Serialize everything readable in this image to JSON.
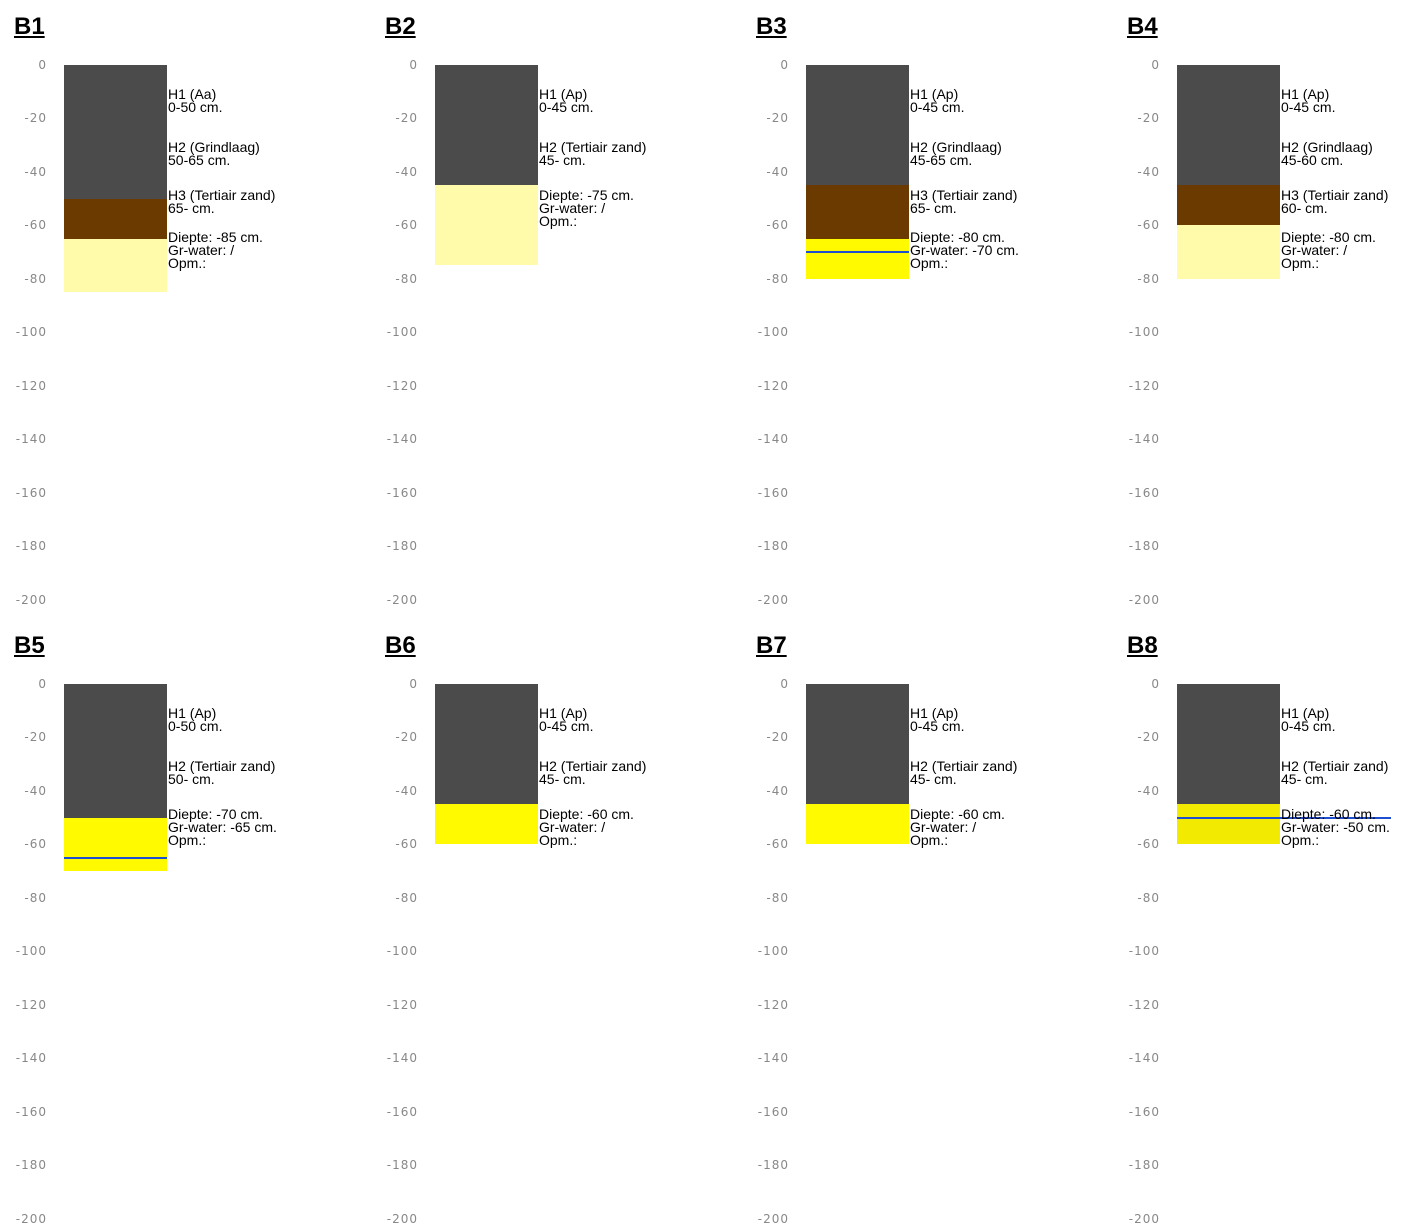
{
  "axis": {
    "ticks": [
      "0",
      "-20",
      "-40",
      "-60",
      "-80",
      "-100",
      "-120",
      "-140",
      "-160",
      "-180",
      "-200"
    ],
    "range_cm": [
      0,
      200
    ]
  },
  "colors": {
    "dark_topsoil": "#4b4b4b",
    "brown_gravel": "#6a3a00",
    "light_yellow_sand": "#fffbaa",
    "bright_yellow_sand": "#fffa00",
    "pale_yellow_sand": "#f2ea00",
    "groundwater_line": "#1f4fd1"
  },
  "boreholes": [
    {
      "title": "B1",
      "layers": [
        {
          "top": 0,
          "bottom": 50,
          "color": "#4b4b4b"
        },
        {
          "top": 50,
          "bottom": 65,
          "color": "#6a3a00"
        },
        {
          "top": 65,
          "bottom": 85,
          "color": "#fffbaa"
        }
      ],
      "groundwater": null,
      "labels": [
        {
          "at": 11,
          "lines": [
            "H1 (Aa)",
            "0-50 cm."
          ]
        },
        {
          "at": 30.5,
          "lines": [
            "H2 (Grindlaag)",
            "50-65 cm."
          ]
        },
        {
          "at": 48.5,
          "lines": [
            "H3 (Tertiair zand)",
            "65- cm."
          ]
        },
        {
          "at": 64.5,
          "lines": [
            "Diepte: -85 cm.",
            "Gr-water: /",
            "Opm.:"
          ]
        }
      ]
    },
    {
      "title": "B2",
      "layers": [
        {
          "top": 0,
          "bottom": 45,
          "color": "#4b4b4b"
        },
        {
          "top": 45,
          "bottom": 75,
          "color": "#fffbaa"
        }
      ],
      "groundwater": null,
      "labels": [
        {
          "at": 11,
          "lines": [
            "H1 (Ap)",
            "0-45 cm."
          ]
        },
        {
          "at": 30.5,
          "lines": [
            "H2 (Tertiair zand)",
            "45- cm."
          ]
        },
        {
          "at": 48.5,
          "lines": [
            "Diepte: -75 cm.",
            "Gr-water: /",
            "Opm.:"
          ]
        }
      ]
    },
    {
      "title": "B3",
      "layers": [
        {
          "top": 0,
          "bottom": 45,
          "color": "#4b4b4b"
        },
        {
          "top": 45,
          "bottom": 65,
          "color": "#6a3a00"
        },
        {
          "top": 65,
          "bottom": 80,
          "color": "#fffa00"
        }
      ],
      "groundwater": 70,
      "labels": [
        {
          "at": 11,
          "lines": [
            "H1 (Ap)",
            "0-45 cm."
          ]
        },
        {
          "at": 30.5,
          "lines": [
            "H2 (Grindlaag)",
            "45-65 cm."
          ]
        },
        {
          "at": 48.5,
          "lines": [
            "H3 (Tertiair zand)",
            "65- cm."
          ]
        },
        {
          "at": 64.5,
          "lines": [
            "Diepte: -80 cm.",
            "Gr-water: -70 cm.",
            "Opm.:"
          ]
        }
      ]
    },
    {
      "title": "B4",
      "layers": [
        {
          "top": 0,
          "bottom": 45,
          "color": "#4b4b4b"
        },
        {
          "top": 45,
          "bottom": 60,
          "color": "#6a3a00"
        },
        {
          "top": 60,
          "bottom": 80,
          "color": "#fffbaa"
        }
      ],
      "groundwater": null,
      "labels": [
        {
          "at": 11,
          "lines": [
            "H1 (Ap)",
            "0-45 cm."
          ]
        },
        {
          "at": 30.5,
          "lines": [
            "H2 (Grindlaag)",
            "45-60 cm."
          ]
        },
        {
          "at": 48.5,
          "lines": [
            "H3 (Tertiair zand)",
            "60- cm."
          ]
        },
        {
          "at": 64.5,
          "lines": [
            "Diepte: -80 cm.",
            "Gr-water: /",
            "Opm.:"
          ]
        }
      ]
    },
    {
      "title": "B5",
      "layers": [
        {
          "top": 0,
          "bottom": 50,
          "color": "#4b4b4b"
        },
        {
          "top": 50,
          "bottom": 70,
          "color": "#fffa00"
        }
      ],
      "groundwater": 65,
      "labels": [
        {
          "at": 11,
          "lines": [
            "H1 (Ap)",
            "0-50 cm."
          ]
        },
        {
          "at": 30.5,
          "lines": [
            "H2 (Tertiair zand)",
            "50- cm."
          ]
        },
        {
          "at": 48.5,
          "lines": [
            "Diepte: -70 cm.",
            "Gr-water: -65 cm.",
            "Opm.:"
          ]
        }
      ]
    },
    {
      "title": "B6",
      "layers": [
        {
          "top": 0,
          "bottom": 45,
          "color": "#4b4b4b"
        },
        {
          "top": 45,
          "bottom": 60,
          "color": "#fffa00"
        }
      ],
      "groundwater": null,
      "labels": [
        {
          "at": 11,
          "lines": [
            "H1 (Ap)",
            "0-45 cm."
          ]
        },
        {
          "at": 30.5,
          "lines": [
            "H2 (Tertiair zand)",
            "45- cm."
          ]
        },
        {
          "at": 48.5,
          "lines": [
            "Diepte: -60 cm.",
            "Gr-water: /",
            "Opm.:"
          ]
        }
      ]
    },
    {
      "title": "B7",
      "layers": [
        {
          "top": 0,
          "bottom": 45,
          "color": "#4b4b4b"
        },
        {
          "top": 45,
          "bottom": 60,
          "color": "#fffa00"
        }
      ],
      "groundwater": null,
      "labels": [
        {
          "at": 11,
          "lines": [
            "H1 (Ap)",
            "0-45 cm."
          ]
        },
        {
          "at": 30.5,
          "lines": [
            "H2 (Tertiair zand)",
            "45- cm."
          ]
        },
        {
          "at": 48.5,
          "lines": [
            "Diepte: -60 cm.",
            "Gr-water: /",
            "Opm.:"
          ]
        }
      ]
    },
    {
      "title": "B8",
      "layers": [
        {
          "top": 0,
          "bottom": 45,
          "color": "#4b4b4b"
        },
        {
          "top": 45,
          "bottom": 60,
          "color": "#f2ea00"
        }
      ],
      "groundwater": 50,
      "labels": [
        {
          "at": 11,
          "lines": [
            "H1 (Ap)",
            "0-45 cm."
          ]
        },
        {
          "at": 30.5,
          "lines": [
            "H2 (Tertiair zand)",
            "45- cm."
          ]
        },
        {
          "at": 48.5,
          "lines": [
            "Diepte: -60 cm.",
            "Gr-water: -50 cm.",
            "Opm.:"
          ]
        }
      ]
    }
  ]
}
